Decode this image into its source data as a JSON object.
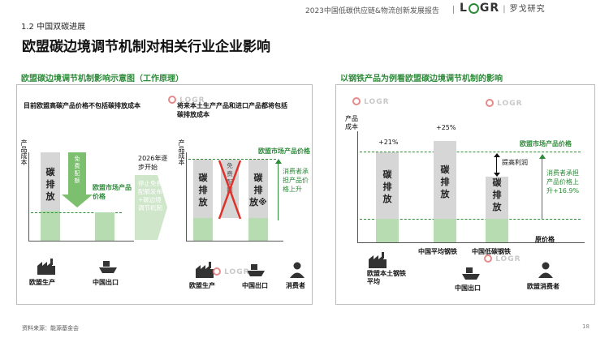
{
  "header": {
    "report_title": "2023中国低碳供应链&物流创新发展报告",
    "logo_text": "LOGR",
    "logo_sub": "research",
    "logo_cn": "罗戈研究"
  },
  "section_label": "1.2 中国双碳进展",
  "main_title": "欧盟碳边境调节机制对相关行业企业影响",
  "watermark": "LOGR research 罗戈研究",
  "left": {
    "title": "欧盟碳边境调节机制影响示意图（工作原理）",
    "note_top": "目前欧盟高碳产品价格不包括碳排放成本",
    "axis_y": "产品成本",
    "bar1_label": "碳排放",
    "free_quota": "免费配额",
    "eu_market_price_1": "欧盟市场产品价格",
    "year": "2026年逐步开始",
    "stop_free": "停止免费配额发布+碳边境调节机制",
    "note_mid": "将来本土生产产品和进口产品都将包括碳排放成本",
    "axis_y2": "产品成本",
    "eu_market_price_2": "欧盟市场产品价格",
    "bar2_label": "碳排放",
    "free_quota_2": "免费配额",
    "bar3_label": "碳排放※",
    "consumer_note": "消费者承担产品价格上升",
    "x_labels": [
      "欧盟生产",
      "中国出口",
      "欧盟生产",
      "中国出口",
      "消费者"
    ]
  },
  "right": {
    "title": "以钢铁产品为例看欧盟碳边境调节机制的影响",
    "axis_y": "产品成本",
    "pct1": "+21%",
    "pct2": "+25%",
    "eu_market_price": "欧盟市场产品价格",
    "raise_profit": "提高利润",
    "consumer_note": "消费者承担产品价格上升+16.9%",
    "bar_label": "碳排放",
    "orig_price": "原价格",
    "x_labels": [
      "欧盟本土钢铁平均",
      "中国平均钢铁",
      "中国低碳钢铁"
    ],
    "icon_labels": [
      "中国出口",
      "欧盟消费者"
    ]
  },
  "footer": {
    "source": "资料来源：能源基金会",
    "page": "18"
  },
  "colors": {
    "accent_green": "#2e8b3a",
    "bar_grey": "#d6d6d6",
    "bar_green": "#b7dcb1",
    "cross_red": "#e0302a"
  }
}
